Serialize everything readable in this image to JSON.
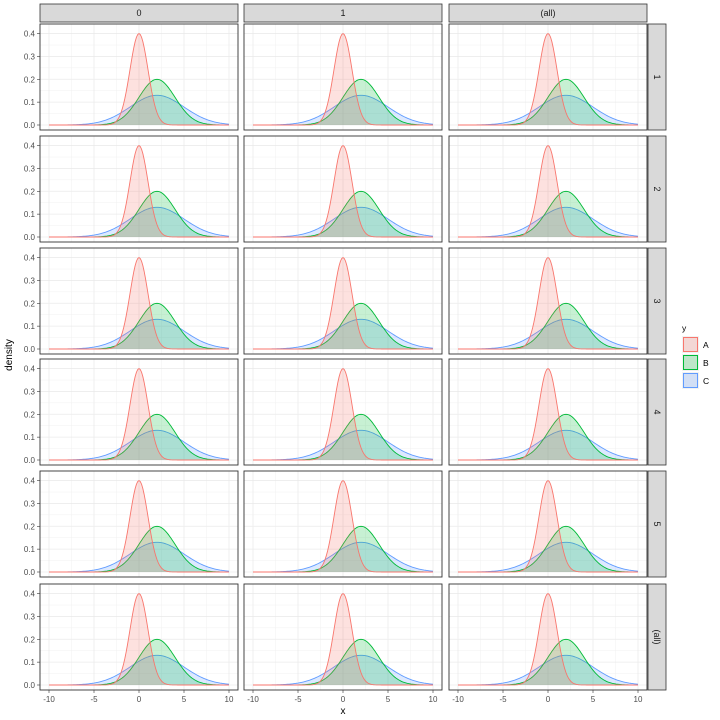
{
  "chart_data": {
    "type": "area",
    "subtype": "density-facet-grid",
    "title": "",
    "xlabel": "x",
    "ylabel": "density",
    "xlim": [
      -10,
      10
    ],
    "ylim": [
      0,
      0.42
    ],
    "x_ticks": [
      -10,
      -5,
      0,
      5,
      10
    ],
    "x_tick_labels": [
      "-10",
      "-5",
      "0",
      "5",
      "10"
    ],
    "y_ticks": [
      0.0,
      0.1,
      0.2,
      0.3,
      0.4
    ],
    "y_tick_labels": [
      "0.0",
      "0.1",
      "0.2",
      "0.3",
      "0.4"
    ],
    "facet_columns": [
      "0",
      "1",
      "(all)"
    ],
    "facet_rows": [
      "1",
      "2",
      "3",
      "4",
      "5",
      "(all)"
    ],
    "grid": true,
    "legend": {
      "title": "y",
      "position": "right",
      "entries": [
        "A",
        "B",
        "C"
      ]
    },
    "series": [
      {
        "name": "A",
        "distribution": "normal",
        "mean": 0,
        "sd": 1,
        "peak_density": 0.4,
        "color": "#F8766D"
      },
      {
        "name": "B",
        "distribution": "normal",
        "mean": 2,
        "sd": 2,
        "peak_density": 0.2,
        "color": "#00BA38"
      },
      {
        "name": "C",
        "distribution": "normal",
        "mean": 2,
        "sd": 3,
        "peak_density": 0.13,
        "color": "#619CFF"
      }
    ]
  }
}
